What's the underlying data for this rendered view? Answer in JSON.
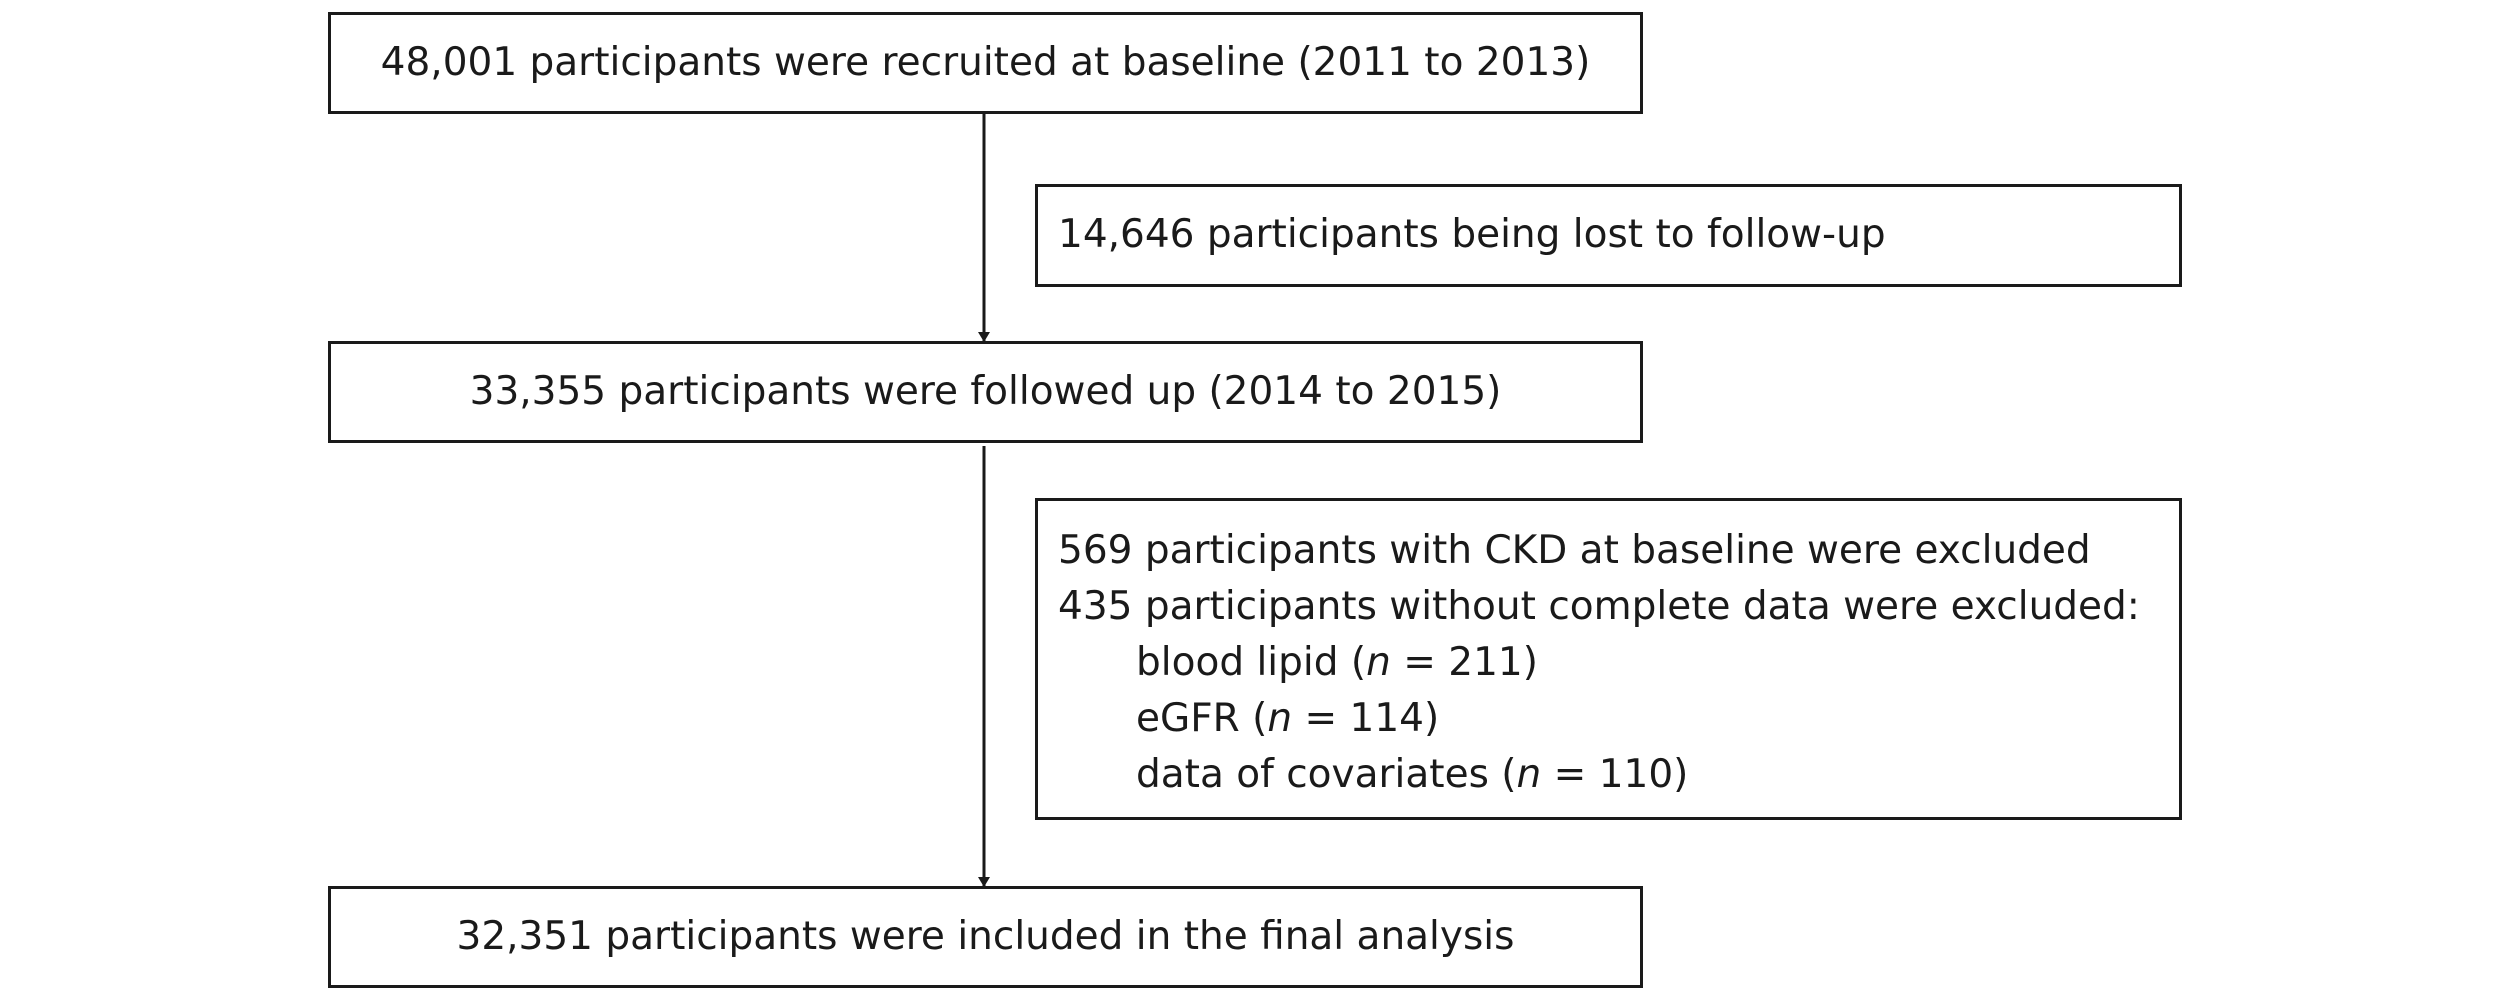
{
  "flowchart": {
    "recruited": "48,001 participants were recruited at baseline (2011 to 2013)",
    "lost": "14,646 participants being lost to follow-up",
    "followed": "33,355 participants were followed up (2014 to 2015)",
    "excluded": {
      "ckd": "569 participants with CKD at baseline were excluded",
      "incomplete": "435 participants without complete data were excluded:",
      "items": [
        {
          "pre": "blood lipid (",
          "var": "n",
          "post": " = 211)"
        },
        {
          "pre": "eGFR (",
          "var": "n",
          "post": " = 114)"
        },
        {
          "pre": "data of covariates (",
          "var": "n",
          "post": " = 110)"
        }
      ]
    },
    "final": "32,351 participants were included in the final analysis"
  }
}
